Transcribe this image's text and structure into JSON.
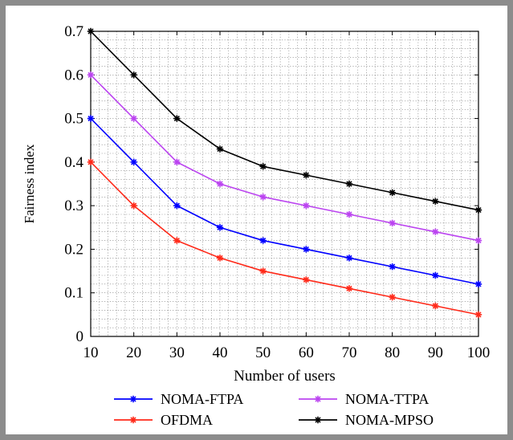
{
  "chart_data": {
    "type": "line",
    "xlabel": "Number of users",
    "ylabel": "Fairness index",
    "x": [
      10,
      20,
      30,
      40,
      50,
      60,
      70,
      80,
      90,
      100
    ],
    "xlim": [
      10,
      100
    ],
    "ylim": [
      0,
      0.7
    ],
    "x_ticks": [
      "10",
      "20",
      "30",
      "40",
      "50",
      "60",
      "70",
      "80",
      "90",
      "100"
    ],
    "y_ticks": [
      "0",
      "0.1",
      "0.2",
      "0.3",
      "0.4",
      "0.5",
      "0.6",
      "0.7"
    ],
    "grid": true,
    "legend_position": "bottom",
    "series": [
      {
        "name": "NOMA-FTPA",
        "color": "#0000ff",
        "values": [
          0.5,
          0.4,
          0.3,
          0.25,
          0.22,
          0.2,
          0.18,
          0.16,
          0.14,
          0.12
        ]
      },
      {
        "name": "NOMA-TTPA",
        "color": "#bb44f0",
        "values": [
          0.6,
          0.5,
          0.4,
          0.35,
          0.32,
          0.3,
          0.28,
          0.26,
          0.24,
          0.22
        ]
      },
      {
        "name": "OFDMA",
        "color": "#ff2a1a",
        "values": [
          0.4,
          0.3,
          0.22,
          0.18,
          0.15,
          0.13,
          0.11,
          0.09,
          0.07,
          0.05
        ]
      },
      {
        "name": "NOMA-MPSO",
        "color": "#000000",
        "values": [
          0.7,
          0.6,
          0.5,
          0.43,
          0.39,
          0.37,
          0.35,
          0.33,
          0.31,
          0.29
        ]
      }
    ]
  }
}
